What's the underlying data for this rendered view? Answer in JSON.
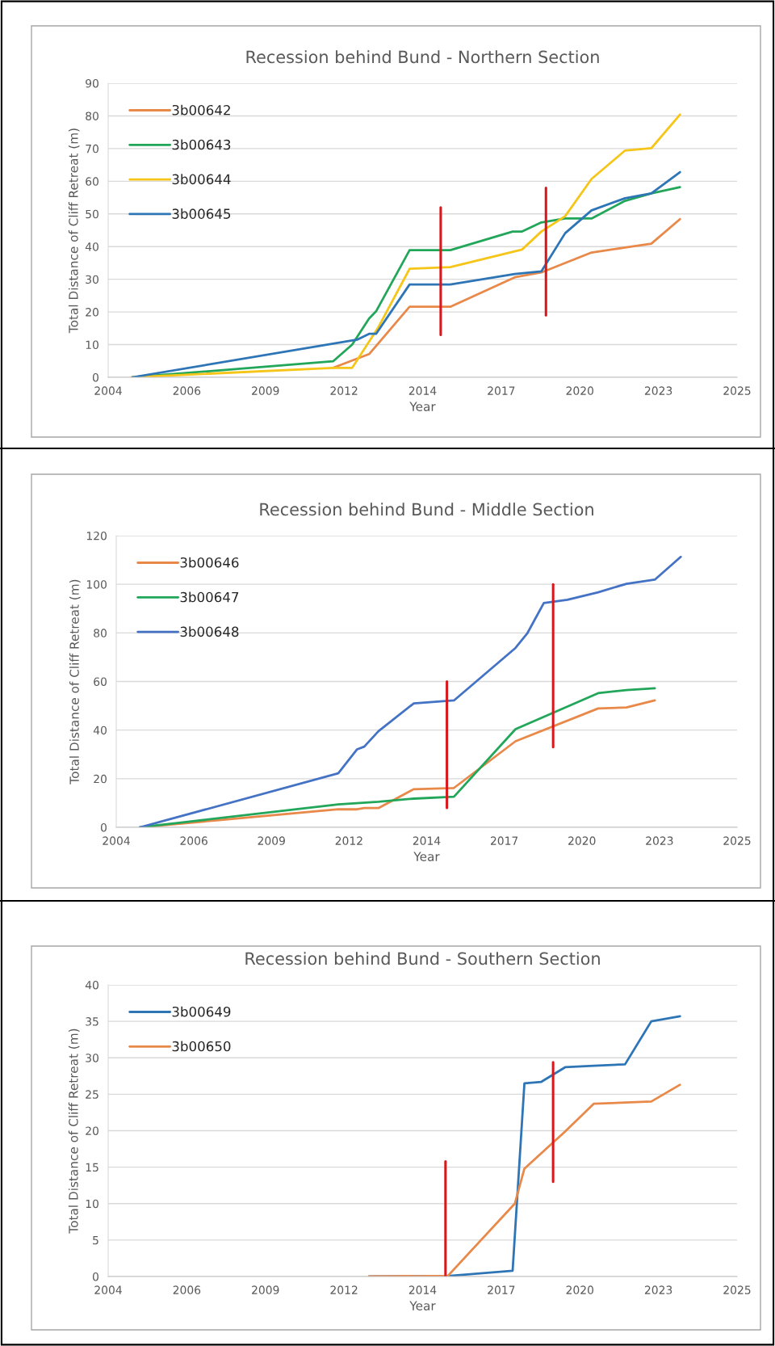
{
  "chart_data": [
    {
      "type": "line",
      "title": "Recession behind Bund - Northern Section",
      "xlabel": "Year",
      "ylabel": "Total Distance of Cliff Retreat (m)",
      "xlim": [
        "2004-01-01",
        "2025-11-26"
      ],
      "xticks": [
        {
          "value": "2004-01-01",
          "label": "2004"
        },
        {
          "value": "2006-09-27",
          "label": "2006"
        },
        {
          "value": "2009-06-23",
          "label": "2009"
        },
        {
          "value": "2012-03-19",
          "label": "2012"
        },
        {
          "value": "2014-12-14",
          "label": "2014"
        },
        {
          "value": "2017-09-09",
          "label": "2017"
        },
        {
          "value": "2020-06-05",
          "label": "2020"
        },
        {
          "value": "2023-03-02",
          "label": "2023"
        },
        {
          "value": "2025-11-26",
          "label": "2025"
        }
      ],
      "ylim": [
        0,
        90
      ],
      "yticks": [
        0,
        10,
        20,
        30,
        40,
        50,
        60,
        70,
        80,
        90
      ],
      "grid": "y",
      "legend": "top left",
      "series": [
        {
          "name": "3b00642",
          "color": "#e8894a",
          "x": [
            "2011-11",
            "2013-02",
            "2014-07",
            "2015-12",
            "2018-03",
            "2019-02",
            "2020-11",
            "2022-01",
            "2022-12",
            "2023-12"
          ],
          "values": [
            2.9,
            7.1,
            21.6,
            21.6,
            30.6,
            32.1,
            38.2,
            39.7,
            40.9,
            48.4
          ]
        },
        {
          "name": "3b00643",
          "color": "#22a65a",
          "x": [
            "2004-11",
            "2011-11",
            "2012-07",
            "2013-02",
            "2013-05",
            "2014-07",
            "2015-12",
            "2018-02",
            "2018-06",
            "2019-02",
            "2019-12",
            "2020-11",
            "2022-01",
            "2022-12",
            "2023-12"
          ],
          "values": [
            0,
            4.9,
            10.0,
            18.0,
            20.2,
            38.9,
            38.9,
            44.6,
            44.6,
            47.4,
            48.6,
            48.6,
            54.0,
            56.3,
            58.2
          ]
        },
        {
          "name": "3b00644",
          "color": "#f5c518",
          "x": [
            "2004-11",
            "2011-11",
            "2012-07",
            "2013-06",
            "2014-07",
            "2015-12",
            "2018-06",
            "2019-02",
            "2019-12",
            "2020-11",
            "2022-01",
            "2022-12",
            "2023-12"
          ],
          "values": [
            0,
            2.9,
            2.9,
            15.4,
            33.2,
            33.7,
            39.1,
            44.6,
            49.3,
            60.7,
            69.4,
            70.1,
            80.4
          ]
        },
        {
          "name": "3b00645",
          "color": "#2e75b6",
          "x": [
            "2004-11",
            "2012-09",
            "2013-02",
            "2013-05",
            "2014-07",
            "2015-12",
            "2018-03",
            "2019-02",
            "2019-12",
            "2020-11",
            "2022-01",
            "2022-12",
            "2023-12"
          ],
          "values": [
            0,
            11.5,
            13.3,
            13.3,
            28.4,
            28.4,
            31.6,
            32.4,
            44.1,
            51.1,
            54.8,
            56.3,
            62.8
          ]
        },
        {
          "color": "#d9181e",
          "x": [
            "2015-08",
            "2015-08"
          ],
          "values": [
            13,
            52
          ]
        },
        {
          "color": "#d9181e",
          "x": [
            "2019-04",
            "2019-04"
          ],
          "values": [
            19,
            58
          ]
        }
      ]
    },
    {
      "type": "line",
      "title": "Recession behind Bund - Middle Section",
      "xlabel": "Year",
      "ylabel": "Total Distance of Cliff Retreat (m)",
      "xlim": [
        "2004-01-01",
        "2025-11-26"
      ],
      "xticks": [
        {
          "value": "2004-01-01",
          "label": "2004"
        },
        {
          "value": "2006-09-27",
          "label": "2006"
        },
        {
          "value": "2009-06-23",
          "label": "2009"
        },
        {
          "value": "2012-03-19",
          "label": "2012"
        },
        {
          "value": "2014-12-14",
          "label": "2014"
        },
        {
          "value": "2017-09-09",
          "label": "2017"
        },
        {
          "value": "2020-06-05",
          "label": "2020"
        },
        {
          "value": "2023-03-02",
          "label": "2023"
        },
        {
          "value": "2025-11-26",
          "label": "2025"
        }
      ],
      "ylim": [
        0,
        120
      ],
      "yticks": [
        0,
        20,
        40,
        60,
        80,
        100,
        120
      ],
      "grid": "y",
      "legend": "top left",
      "series": [
        {
          "name": "3b00646",
          "color": "#e8894a",
          "x": [
            "2004-11",
            "2011-11",
            "2012-07",
            "2012-10",
            "2013-04",
            "2014-07",
            "2015-12",
            "2018-02",
            "2021-01",
            "2022-01",
            "2023-01"
          ],
          "values": [
            0,
            7.4,
            7.4,
            7.9,
            7.9,
            15.7,
            16.2,
            35.4,
            48.9,
            49.3,
            52.2
          ]
        },
        {
          "name": "3b00647",
          "color": "#22a65a",
          "x": [
            "2004-11",
            "2011-11",
            "2013-04",
            "2014-07",
            "2015-12",
            "2018-02",
            "2021-01",
            "2022-01",
            "2023-01"
          ],
          "values": [
            0,
            9.4,
            10.5,
            11.8,
            12.6,
            40.4,
            55.2,
            56.5,
            57.2
          ]
        },
        {
          "name": "3b00648",
          "color": "#4472c4",
          "x": [
            "2004-11",
            "2011-11",
            "2012-07",
            "2012-10",
            "2013-04",
            "2014-07",
            "2015-12",
            "2018-02",
            "2018-07",
            "2019-02",
            "2019-12",
            "2021-01",
            "2022-01",
            "2023-01",
            "2023-12"
          ],
          "values": [
            0,
            22.2,
            32.1,
            33.2,
            39.5,
            51.0,
            52.2,
            73.8,
            79.7,
            92.3,
            93.6,
            96.7,
            100.2,
            101.9,
            111.3
          ]
        },
        {
          "color": "#d9181e",
          "x": [
            "2015-09",
            "2015-09"
          ],
          "values": [
            8,
            60
          ]
        },
        {
          "color": "#d9181e",
          "x": [
            "2019-06",
            "2019-06"
          ],
          "values": [
            33,
            100
          ]
        }
      ]
    },
    {
      "type": "line",
      "title": "Recession behind Bund - Southern Section",
      "xlabel": "Year",
      "ylabel": "Total Distance of Cliff Retreat (m)",
      "xlim": [
        "2004-01-01",
        "2025-11-26"
      ],
      "xticks": [
        {
          "value": "2004-01-01",
          "label": "2004"
        },
        {
          "value": "2006-09-27",
          "label": "2006"
        },
        {
          "value": "2009-06-23",
          "label": "2009"
        },
        {
          "value": "2012-03-19",
          "label": "2012"
        },
        {
          "value": "2014-12-14",
          "label": "2014"
        },
        {
          "value": "2017-09-09",
          "label": "2017"
        },
        {
          "value": "2020-06-05",
          "label": "2020"
        },
        {
          "value": "2023-03-02",
          "label": "2023"
        },
        {
          "value": "2025-11-26",
          "label": "2025"
        }
      ],
      "ylim": [
        0,
        40
      ],
      "yticks": [
        0,
        5,
        10,
        15,
        20,
        25,
        30,
        35,
        40
      ],
      "grid": "y",
      "legend": "top left",
      "series": [
        {
          "name": "3b00649",
          "color": "#2e75b6",
          "x": [
            "2013-02",
            "2015-12",
            "2018-02",
            "2018-07",
            "2019-02",
            "2019-12",
            "2020-12",
            "2022-01",
            "2022-12",
            "2023-12"
          ],
          "values": [
            0,
            0.1,
            0.8,
            26.5,
            26.7,
            28.7,
            28.9,
            29.1,
            35.0,
            35.7
          ]
        },
        {
          "name": "3b00650",
          "color": "#e8894a",
          "x": [
            "2013-02",
            "2015-11",
            "2018-03",
            "2018-07",
            "2019-12",
            "2020-12",
            "2022-12",
            "2023-12"
          ],
          "values": [
            0,
            0.1,
            10.0,
            14.8,
            19.9,
            23.7,
            24.0,
            26.3
          ]
        },
        {
          "color": "#d9181e",
          "x": [
            "2015-10",
            "2015-10"
          ],
          "values": [
            0,
            15.8
          ]
        },
        {
          "color": "#d9181e",
          "x": [
            "2019-07",
            "2019-07"
          ],
          "values": [
            13,
            29.4
          ]
        }
      ]
    }
  ]
}
